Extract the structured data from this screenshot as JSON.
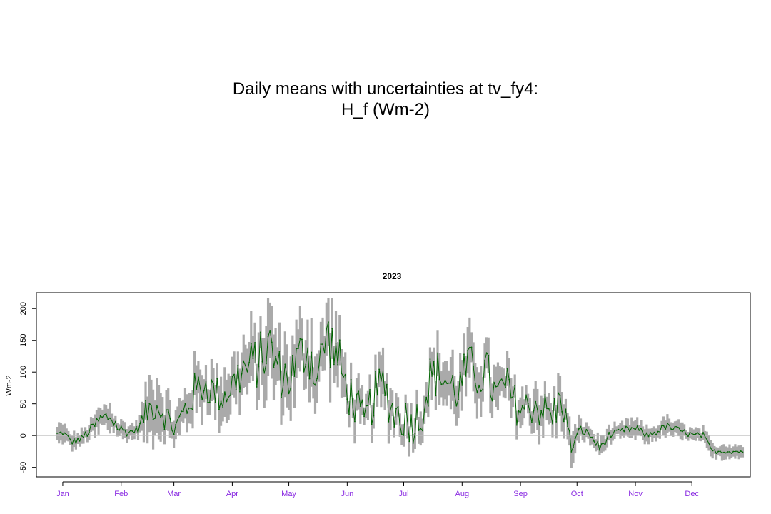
{
  "title_line1": "Daily means with uncertainties at tv_fy4:",
  "title_line2": "H_f (Wm-2)",
  "chart_data": {
    "type": "line",
    "subtitle": "2023",
    "ylabel": "Wm-2",
    "xlabel": "",
    "ylim": [
      -65,
      225
    ],
    "yticks": [
      -50,
      0,
      50,
      100,
      150,
      200
    ],
    "x_tick_labels": [
      "Jan",
      "Feb",
      "Mar",
      "Apr",
      "May",
      "Jun",
      "Jul",
      "Aug",
      "Sep",
      "Oct",
      "Nov",
      "Dec"
    ],
    "x_tick_days": [
      15,
      46,
      74,
      105,
      135,
      166,
      196,
      227,
      258,
      288,
      319,
      349
    ],
    "x_range": [
      1,
      380
    ],
    "reference_line": 0,
    "colors": {
      "mean_line": "#006400",
      "uncertainty_band": "#aaaaaa",
      "reference_line": "#bbbbbb",
      "month_labels": "#8a2be2"
    },
    "key_days": [
      0,
      5,
      10,
      15,
      20,
      25,
      30,
      35,
      40,
      45,
      50,
      55,
      60,
      65,
      70,
      75,
      80,
      85,
      90,
      95,
      100,
      105,
      110,
      115,
      120,
      125,
      130,
      135,
      140,
      145,
      150,
      155,
      160,
      165,
      170,
      175,
      180,
      185,
      190,
      195,
      200,
      205,
      210,
      215,
      220,
      225,
      230,
      235,
      240,
      245,
      250,
      255,
      260,
      265,
      270,
      275,
      280,
      285,
      290,
      295,
      300,
      305,
      310,
      315,
      320,
      325,
      330,
      335,
      340,
      345,
      350,
      355,
      360,
      365
    ],
    "key_means": [
      -40,
      -20,
      0,
      5,
      -10,
      -5,
      10,
      25,
      30,
      10,
      5,
      10,
      40,
      50,
      30,
      10,
      40,
      70,
      80,
      70,
      60,
      80,
      100,
      110,
      120,
      140,
      100,
      90,
      120,
      140,
      90,
      160,
      130,
      80,
      50,
      20,
      60,
      80,
      40,
      30,
      20,
      30,
      90,
      100,
      80,
      70,
      110,
      95,
      100,
      60,
      80,
      50,
      40,
      50,
      40,
      30,
      60,
      -20,
      10,
      0,
      -20,
      0,
      5,
      10,
      10,
      0,
      5,
      15,
      10,
      5,
      0,
      0,
      -25,
      -25
    ],
    "key_halfwidth": [
      15,
      12,
      12,
      12,
      10,
      10,
      12,
      18,
      18,
      12,
      10,
      10,
      35,
      35,
      25,
      20,
      25,
      30,
      30,
      28,
      28,
      30,
      38,
      38,
      40,
      45,
      38,
      38,
      40,
      45,
      35,
      40,
      38,
      30,
      25,
      20,
      28,
      30,
      25,
      22,
      20,
      22,
      28,
      30,
      32,
      30,
      35,
      32,
      32,
      28,
      28,
      25,
      25,
      25,
      25,
      25,
      25,
      20,
      15,
      12,
      12,
      10,
      10,
      12,
      12,
      10,
      10,
      12,
      12,
      10,
      10,
      10,
      10,
      10
    ],
    "noise_amplitude": [
      3,
      8,
      5,
      5,
      5,
      6,
      8,
      15,
      15,
      10,
      6,
      6,
      25,
      25,
      25,
      25,
      30,
      30,
      30,
      28,
      28,
      30,
      38,
      40,
      45,
      45,
      40,
      40,
      42,
      48,
      40,
      45,
      45,
      40,
      35,
      30,
      38,
      38,
      35,
      35,
      35,
      35,
      38,
      38,
      38,
      35,
      38,
      38,
      38,
      35,
      35,
      32,
      32,
      32,
      32,
      32,
      32,
      10,
      8,
      6,
      8,
      6,
      5,
      6,
      6,
      5,
      5,
      6,
      6,
      5,
      5,
      5,
      3,
      3
    ]
  }
}
